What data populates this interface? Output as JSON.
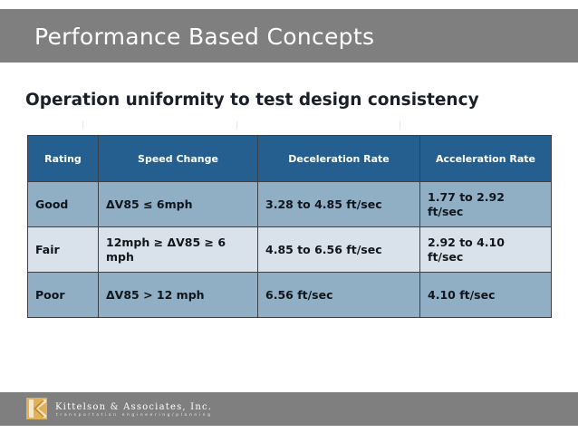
{
  "slide": {
    "title": "Performance Based Concepts",
    "subtitle": "Operation uniformity to test design consistency"
  },
  "table": {
    "headers": [
      "Rating",
      "Speed Change",
      "Deceleration Rate",
      "Acceleration Rate"
    ],
    "rows": [
      [
        "Good",
        "ΔV85 ≤ 6mph",
        "3.28 to 4.85 ft/sec",
        "1.77 to 2.92 ft/sec"
      ],
      [
        "Fair",
        "12mph ≥ ΔV85 ≥ 6 mph",
        "4.85 to 6.56 ft/sec",
        "2.92 to 4.10 ft/sec"
      ],
      [
        "Poor",
        "ΔV85 > 12 mph",
        "6.56 ft/sec",
        "4.10 ft/sec"
      ]
    ]
  },
  "footer": {
    "company": "Kittelson & Associates, Inc.",
    "tagline": "transportation engineering/planning",
    "logo_icon": "kittelson-k-logo"
  },
  "colors": {
    "band": "#7f7f7f",
    "header": "#245f90",
    "row_dark": "#90aec4",
    "row_light": "#d9e2ea",
    "logo_accent": "#d9a441"
  }
}
